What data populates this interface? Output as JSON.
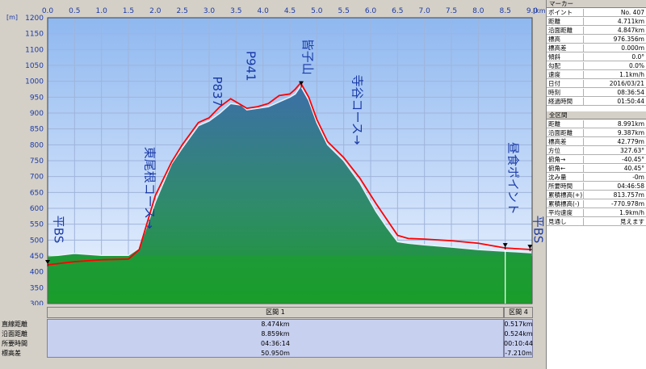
{
  "chart_data": {
    "type": "area",
    "x_unit": "[km]",
    "y_unit": "[m]",
    "xlim": [
      0,
      9.0
    ],
    "ylim": [
      300,
      1200
    ],
    "x_ticks": [
      "0.0",
      "0.5",
      "1.0",
      "1.5",
      "2.0",
      "2.5",
      "3.0",
      "3.5",
      "4.0",
      "4.5",
      "5.0",
      "5.5",
      "6.0",
      "6.5",
      "7.0",
      "7.5",
      "8.0",
      "8.5",
      "9.0"
    ],
    "y_ticks": [
      "1200",
      "1150",
      "1100",
      "1050",
      "1000",
      "950",
      "900",
      "850",
      "800",
      "750",
      "700",
      "650",
      "600",
      "550",
      "500",
      "450",
      "400",
      "350",
      "300"
    ],
    "series": [
      {
        "color": "#2e7db8",
        "x": [
          0.0,
          0.5,
          1.0,
          1.5,
          1.7,
          2.0,
          2.3,
          2.5,
          2.8,
          3.0,
          3.2,
          3.4,
          3.6,
          3.7,
          3.9,
          4.1,
          4.3,
          4.5,
          4.6,
          4.7,
          4.75,
          4.85,
          5.0,
          5.2,
          5.5,
          5.8,
          6.1,
          6.3,
          6.5,
          6.7,
          7.0,
          7.5,
          8.0,
          8.5,
          9.0
        ],
        "y": [
          448,
          458,
          452,
          452,
          475,
          620,
          740,
          790,
          860,
          875,
          900,
          930,
          925,
          910,
          915,
          920,
          935,
          950,
          960,
          985,
          970,
          940,
          870,
          800,
          750,
          680,
          590,
          540,
          495,
          490,
          485,
          478,
          470,
          465,
          460
        ]
      },
      {
        "color": "#ff0000",
        "x": [
          0.0,
          0.5,
          1.0,
          1.5,
          1.7,
          2.0,
          2.3,
          2.5,
          2.8,
          3.0,
          3.2,
          3.4,
          3.6,
          3.7,
          3.9,
          4.1,
          4.3,
          4.5,
          4.6,
          4.7,
          4.75,
          4.85,
          5.0,
          5.2,
          5.5,
          5.8,
          6.1,
          6.3,
          6.5,
          6.7,
          7.0,
          7.5,
          8.0,
          8.5,
          9.0
        ],
        "y": [
          422,
          432,
          438,
          440,
          470,
          640,
          745,
          800,
          870,
          885,
          920,
          945,
          925,
          915,
          920,
          930,
          955,
          960,
          975,
          995,
          980,
          950,
          880,
          810,
          760,
          695,
          615,
          565,
          515,
          505,
          503,
          498,
          490,
          475,
          470
        ]
      }
    ],
    "annotations": [
      {
        "text": "平BS",
        "x": 0.05,
        "y": 490
      },
      {
        "text": "東尾根コース→",
        "x": 1.75,
        "y": 535
      },
      {
        "text": "P837",
        "x": 3.0,
        "y": 920
      },
      {
        "text": "P941",
        "x": 3.62,
        "y": 1000
      },
      {
        "text": "皆子山",
        "x": 4.68,
        "y": 1020
      },
      {
        "text": "寺谷コース→",
        "x": 5.6,
        "y": 800
      },
      {
        "text": "昼食ポイント",
        "x": 8.5,
        "y": 580
      },
      {
        "text": "平BS",
        "x": 8.96,
        "y": 490
      }
    ]
  },
  "stats": {
    "sections": [
      "区間 1",
      "区間 4"
    ],
    "row_labels": [
      "直線距離",
      "沿面距離",
      "所要時間",
      "標高差"
    ],
    "col1": [
      "8.474km",
      "8.859km",
      "04:36:14",
      "50.950m"
    ],
    "col2": [
      "0.517km",
      "0.524km",
      "00:10:44",
      "-7.210m"
    ]
  },
  "panel": {
    "marker_title": "マーカー",
    "marker_rows": [
      {
        "k": "ポイント",
        "v": "No. 407"
      },
      {
        "k": "距離",
        "v": "4.711km"
      },
      {
        "k": "沿面距離",
        "v": "4.847km"
      },
      {
        "k": "標高",
        "v": "976.356m"
      },
      {
        "k": "標高差",
        "v": "0.000m"
      },
      {
        "k": "傾斜",
        "v": "0.0°"
      },
      {
        "k": "勾配",
        "v": "0.0%"
      },
      {
        "k": "速度",
        "v": "1.1km/h"
      },
      {
        "k": "日付",
        "v": "2016/03/21"
      },
      {
        "k": "時刻",
        "v": "08:36:54"
      },
      {
        "k": "経過時間",
        "v": "01:50:44"
      }
    ],
    "all_title": "全区間",
    "all_rows": [
      {
        "k": "距離",
        "v": "8.991km"
      },
      {
        "k": "沿面距離",
        "v": "9.387km"
      },
      {
        "k": "標高差",
        "v": "42.779m"
      },
      {
        "k": "方位",
        "v": "327.63°"
      },
      {
        "k": "俯角→",
        "v": "-40.45°"
      },
      {
        "k": "俯角←",
        "v": "40.45°"
      },
      {
        "k": "沈み量",
        "v": "-0m"
      },
      {
        "k": "所要時間",
        "v": "04:46:58"
      },
      {
        "k": "累積標高(+)",
        "v": "813.757m"
      },
      {
        "k": "累積標高(-)",
        "v": "-770.978m"
      },
      {
        "k": "平均速度",
        "v": "1.9km/h"
      },
      {
        "k": "見通し",
        "v": "見えます"
      }
    ]
  }
}
